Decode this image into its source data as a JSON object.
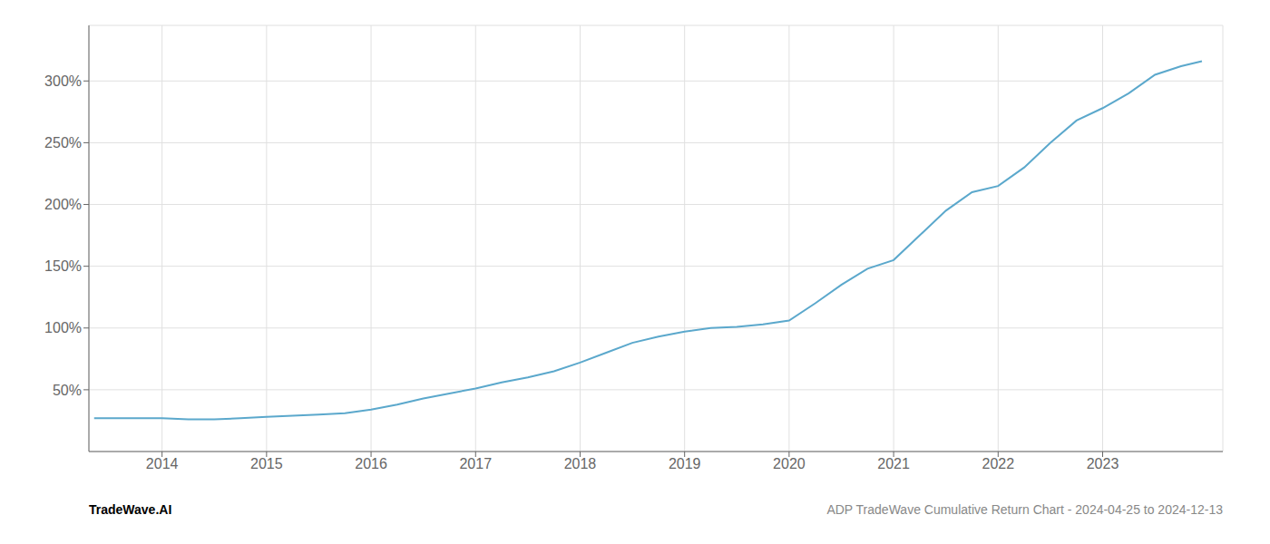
{
  "chart_data": {
    "type": "line",
    "title": "ADP TradeWave Cumulative Return Chart - 2024-04-25 to 2024-12-13",
    "annotations": [
      "TradeWave.AI"
    ],
    "color": "#5BA8CC",
    "x": [
      2013.35,
      2014.0,
      2014.25,
      2014.5,
      2014.75,
      2015.0,
      2015.25,
      2015.5,
      2015.75,
      2016.0,
      2016.25,
      2016.5,
      2016.75,
      2017.0,
      2017.25,
      2017.5,
      2017.75,
      2018.0,
      2018.25,
      2018.5,
      2018.75,
      2019.0,
      2019.25,
      2019.5,
      2019.75,
      2020.0,
      2020.25,
      2020.5,
      2020.75,
      2021.0,
      2021.25,
      2021.5,
      2021.75,
      2022.0,
      2022.25,
      2022.5,
      2022.75,
      2023.0,
      2023.25,
      2023.5,
      2023.75,
      2023.95
    ],
    "values": [
      27,
      27,
      26,
      26,
      27,
      28,
      29,
      30,
      31,
      34,
      38,
      43,
      47,
      51,
      56,
      60,
      65,
      72,
      80,
      88,
      93,
      97,
      100,
      101,
      103,
      106,
      120,
      135,
      148,
      155,
      175,
      195,
      210,
      215,
      230,
      250,
      268,
      278,
      290,
      305,
      312,
      316
    ],
    "xlim": [
      2013.3,
      2024.15
    ],
    "ylim": [
      0,
      345
    ],
    "xticks": [
      2014,
      2015,
      2016,
      2017,
      2018,
      2019,
      2020,
      2021,
      2022,
      2023
    ],
    "yticks": [
      {
        "value": 50,
        "label": "50%"
      },
      {
        "value": 100,
        "label": "100%"
      },
      {
        "value": 150,
        "label": "150%"
      },
      {
        "value": 200,
        "label": "200%"
      },
      {
        "value": 250,
        "label": "250%"
      },
      {
        "value": 300,
        "label": "300%"
      }
    ],
    "grid": true
  }
}
